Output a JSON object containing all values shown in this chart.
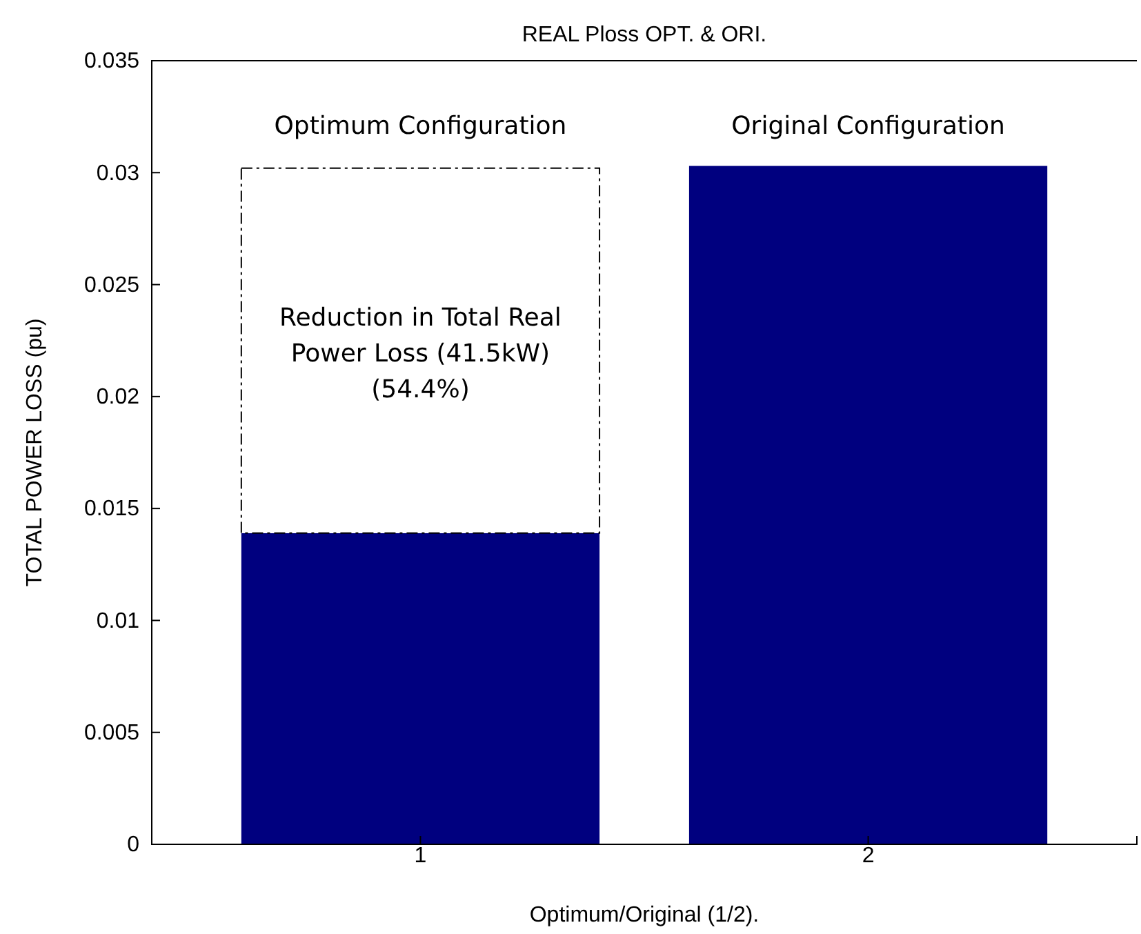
{
  "chart_data": {
    "type": "bar",
    "title": "REAL Ploss OPT. & ORI.",
    "xlabel": "Optimum/Original (1/2).",
    "ylabel": "TOTAL POWER LOSS (pu)",
    "categories": [
      "1",
      "2"
    ],
    "stacked": true,
    "series": [
      {
        "color": "#00007f",
        "values": [
          0.0139,
          0.0303
        ]
      },
      {
        "color": "#ffffff",
        "line_style": "dashed",
        "values": [
          0.0163,
          null
        ]
      }
    ],
    "ylim": [
      0,
      0.035
    ],
    "yticks": [
      0,
      0.005,
      0.01,
      0.015,
      0.02,
      0.025,
      0.03,
      0.035
    ],
    "grid": false,
    "annotations": [
      "Optimum Configuration",
      "Original Configuration",
      "Reduction in Total Real Power Loss (41.5kW) (54.4%)"
    ]
  }
}
